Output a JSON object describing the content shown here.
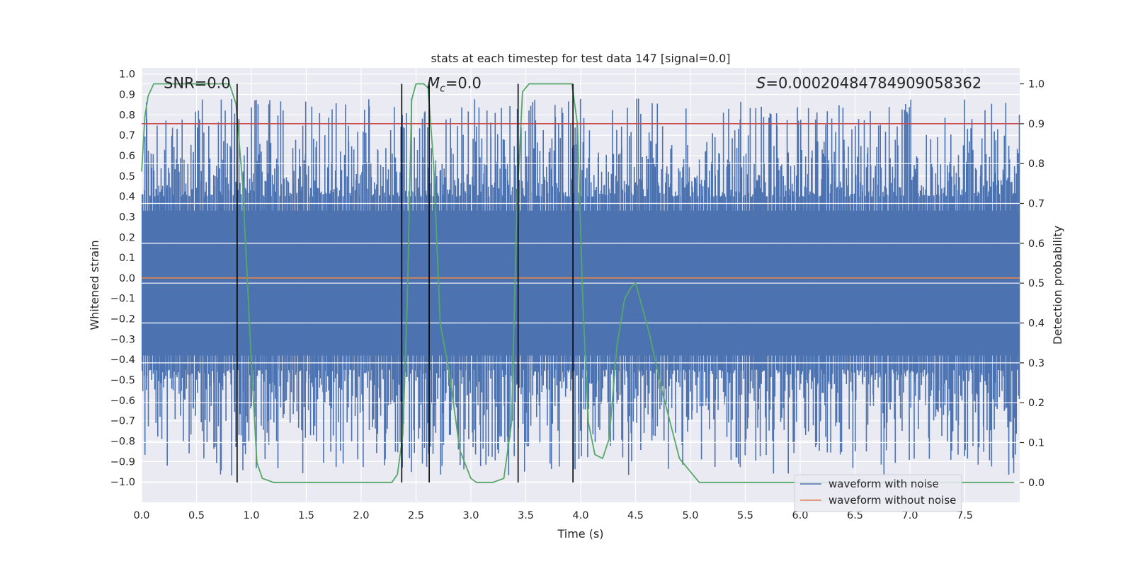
{
  "chart_data": {
    "type": "line",
    "title": "stats at each timestep for test data 147 [signal=0.0]",
    "xlabel": "Time (s)",
    "ylabel": "Whitened strain",
    "y2label": "Detection probability",
    "xlim": [
      0.0,
      8.0
    ],
    "ylim": [
      -1.1,
      1.03
    ],
    "y2lim": [
      -0.05,
      1.04
    ],
    "x_ticks": [
      0.0,
      0.5,
      1.0,
      1.5,
      2.0,
      2.5,
      3.0,
      3.5,
      4.0,
      4.5,
      5.0,
      5.5,
      6.0,
      6.5,
      7.0,
      7.5
    ],
    "x_tick_labels": [
      "0.0",
      "0.5",
      "1.0",
      "1.5",
      "2.0",
      "2.5",
      "3.0",
      "3.5",
      "4.0",
      "4.5",
      "5.0",
      "5.5",
      "6.0",
      "6.5",
      "7.0",
      "7.5"
    ],
    "y_ticks": [
      1.0,
      0.9,
      0.8,
      0.7,
      0.6,
      0.5,
      0.4,
      0.3,
      0.2,
      0.1,
      0.0,
      -0.1,
      -0.2,
      -0.3,
      -0.4,
      -0.5,
      -0.6,
      -0.7,
      -0.8,
      -0.9,
      -1.0
    ],
    "y_tick_labels": [
      "1.0",
      "0.9",
      "0.8",
      "0.7",
      "0.6",
      "0.5",
      "0.4",
      "0.3",
      "0.2",
      "0.1",
      "0.0",
      "−0.1",
      "−0.2",
      "−0.3",
      "−0.4",
      "−0.5",
      "−0.6",
      "−0.7",
      "−0.8",
      "−0.9",
      "−1.0"
    ],
    "y2_ticks": [
      1.0,
      0.9,
      0.8,
      0.7,
      0.6,
      0.5,
      0.4,
      0.3,
      0.2,
      0.1,
      0.0
    ],
    "y2_tick_labels": [
      "1.0",
      "0.9",
      "0.8",
      "0.7",
      "0.6",
      "0.5",
      "0.4",
      "0.3",
      "0.2",
      "0.1",
      "0.0"
    ],
    "annotations": [
      {
        "name": "snr-annotation",
        "text": "SNR=0.0",
        "x": 0.2,
        "y": 0.955
      },
      {
        "name": "mc-annotation",
        "text": "M_c=0.0",
        "base": "M",
        "sub": "c",
        "rest": "=0.0",
        "x": 2.6,
        "y": 0.955
      },
      {
        "name": "s-annotation",
        "text": "S=0.00020484784909058362",
        "italic": "S",
        "rest": "=0.00020484784909058362",
        "x": 5.6,
        "y": 0.955
      }
    ],
    "threshold": {
      "axis": "y2",
      "value": 0.9,
      "color": "#c44e52"
    },
    "noise_band": {
      "color": "#4c72b0",
      "t_start": 0.0,
      "t_end": 8.0,
      "core_upper": 0.33,
      "core_lower": -0.38,
      "peak_upper_range": [
        0.4,
        0.88
      ],
      "peak_lower_range": [
        -0.45,
        -0.97
      ],
      "samples": 900
    },
    "vertical_lines": [
      0.87,
      2.37,
      2.62,
      3.43,
      3.93
    ],
    "vertical_line_y2_top": 1.0,
    "vertical_line_y2_bottom": 0.0,
    "series": [
      {
        "name": "waveform with noise",
        "color": "#4c72b0",
        "axis": "y",
        "render": "noise_band"
      },
      {
        "name": "waveform without noise",
        "color": "#dd8452",
        "axis": "y",
        "x": [
          0.0,
          8.0
        ],
        "y": [
          0.0,
          0.0
        ]
      },
      {
        "name": "detection probability",
        "color": "#55a868",
        "axis": "y2",
        "in_legend": false,
        "x": [
          0.0,
          0.03,
          0.06,
          0.11,
          0.2,
          0.4,
          0.6,
          0.8,
          0.86,
          0.92,
          1.0,
          1.05,
          1.1,
          1.2,
          1.4,
          1.8,
          2.2,
          2.28,
          2.33,
          2.38,
          2.42,
          2.46,
          2.5,
          2.57,
          2.61,
          2.66,
          2.72,
          2.8,
          2.9,
          3.0,
          3.05,
          3.1,
          3.2,
          3.3,
          3.37,
          3.42,
          3.47,
          3.53,
          3.65,
          3.8,
          3.92,
          3.97,
          4.02,
          4.07,
          4.13,
          4.2,
          4.26,
          4.33,
          4.4,
          4.46,
          4.5,
          4.55,
          4.62,
          4.75,
          4.9,
          5.02,
          5.08,
          5.15,
          5.3,
          5.6,
          6.0,
          6.5,
          7.0,
          7.5,
          7.95
        ],
        "y": [
          0.78,
          0.92,
          0.97,
          1.0,
          1.0,
          1.0,
          1.0,
          1.0,
          0.95,
          0.75,
          0.3,
          0.05,
          0.01,
          0.0,
          0.0,
          0.0,
          0.0,
          0.0,
          0.02,
          0.12,
          0.45,
          0.96,
          1.0,
          1.0,
          0.99,
          0.8,
          0.4,
          0.28,
          0.08,
          0.01,
          0.0,
          0.0,
          0.0,
          0.01,
          0.15,
          0.7,
          0.98,
          1.0,
          1.0,
          1.0,
          1.0,
          0.9,
          0.45,
          0.15,
          0.07,
          0.06,
          0.11,
          0.34,
          0.46,
          0.49,
          0.5,
          0.45,
          0.38,
          0.22,
          0.06,
          0.02,
          0.0,
          0.0,
          0.0,
          0.0,
          0.0,
          0.0,
          0.0,
          0.0,
          0.0
        ]
      }
    ],
    "legend": {
      "location": "lower-right",
      "entries": [
        {
          "label": "waveform with noise",
          "color": "#4c72b0"
        },
        {
          "label": "waveform without noise",
          "color": "#dd8452"
        }
      ]
    }
  }
}
